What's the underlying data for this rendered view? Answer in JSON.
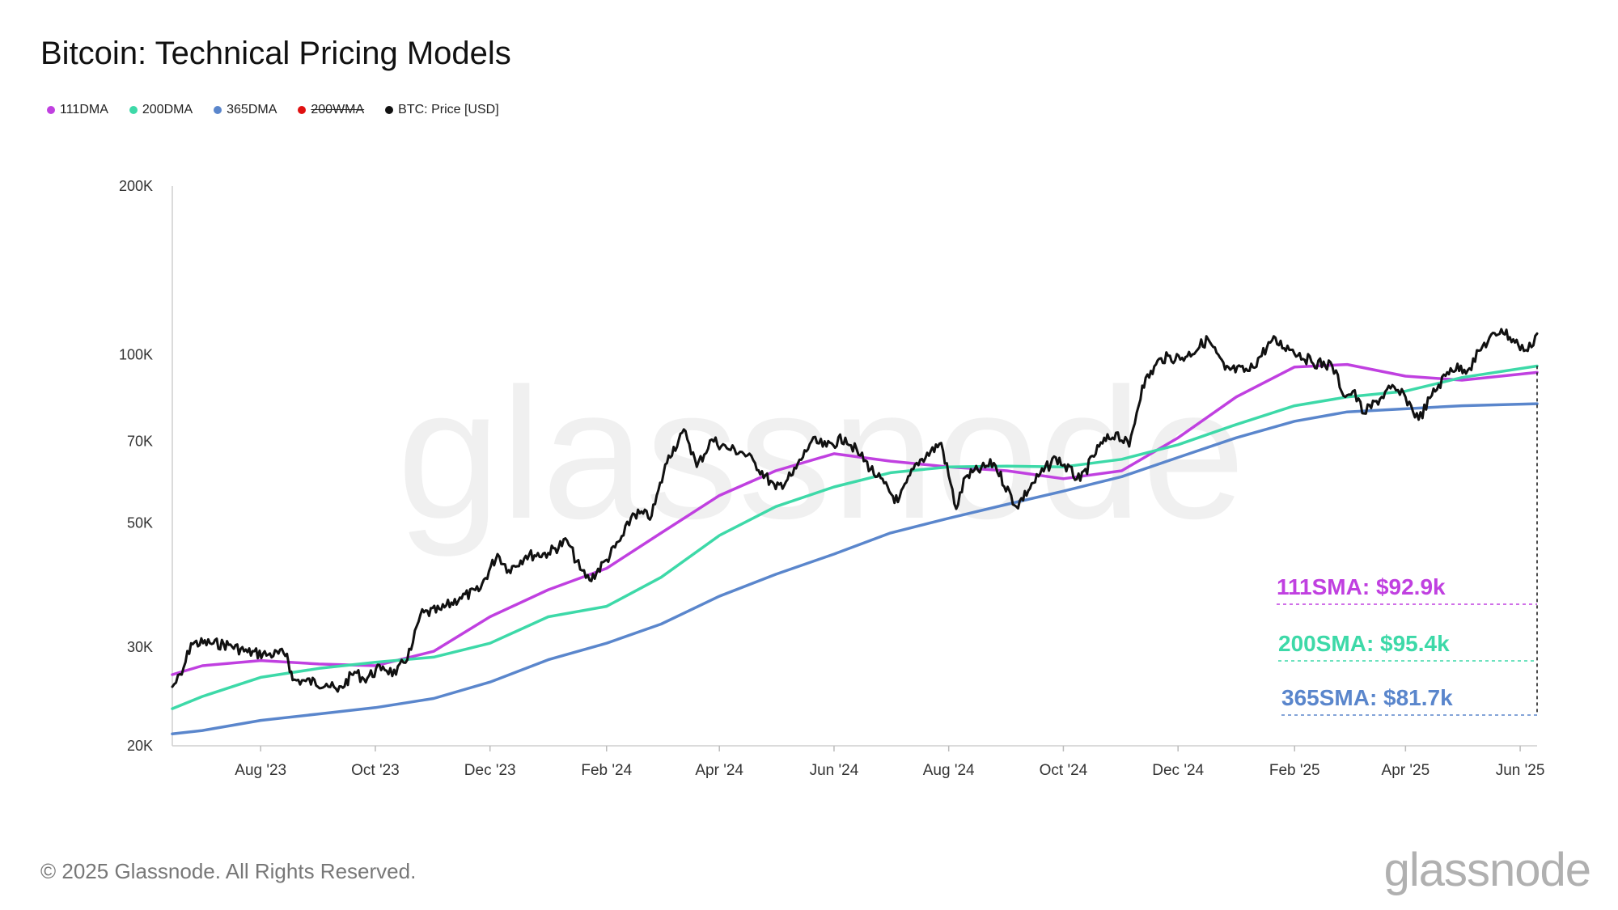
{
  "title": "Bitcoin: Technical Pricing Models",
  "legend": [
    {
      "label": "111DMA",
      "color": "#c040e0",
      "strike": false
    },
    {
      "label": "200DMA",
      "color": "#3dd9a8",
      "strike": false
    },
    {
      "label": "365DMA",
      "color": "#5a86cc",
      "strike": false
    },
    {
      "label": "200WMA",
      "color": "#e01010",
      "strike": true
    },
    {
      "label": "BTC: Price [USD]",
      "color": "#111111",
      "strike": false
    }
  ],
  "watermark": "glassnode",
  "footer": {
    "copyright": "© 2025 Glassnode. All Rights Reserved.",
    "logo": "glassnode"
  },
  "chart_data": {
    "type": "line",
    "title": "Bitcoin: Technical Pricing Models",
    "y_scale": "log",
    "ylim": [
      20000,
      200000
    ],
    "y_ticks": [
      {
        "value": 20000,
        "label": "20K"
      },
      {
        "value": 30000,
        "label": "30K"
      },
      {
        "value": 50000,
        "label": "50K"
      },
      {
        "value": 70000,
        "label": "70K"
      },
      {
        "value": 100000,
        "label": "100K"
      },
      {
        "value": 200000,
        "label": "200K"
      }
    ],
    "xlim": [
      "2023-06-15",
      "2025-06-10"
    ],
    "x_ticks": [
      {
        "date": "2023-08-01",
        "label": "Aug '23"
      },
      {
        "date": "2023-10-01",
        "label": "Oct '23"
      },
      {
        "date": "2023-12-01",
        "label": "Dec '23"
      },
      {
        "date": "2024-02-01",
        "label": "Feb '24"
      },
      {
        "date": "2024-04-01",
        "label": "Apr '24"
      },
      {
        "date": "2024-06-01",
        "label": "Jun '24"
      },
      {
        "date": "2024-08-01",
        "label": "Aug '24"
      },
      {
        "date": "2024-10-01",
        "label": "Oct '24"
      },
      {
        "date": "2024-12-01",
        "label": "Dec '24"
      },
      {
        "date": "2025-02-01",
        "label": "Feb '25"
      },
      {
        "date": "2025-04-01",
        "label": "Apr '25"
      },
      {
        "date": "2025-06-01",
        "label": "Jun '25"
      }
    ],
    "grid": false,
    "legend_position": "top-left",
    "series": [
      {
        "name": "111DMA",
        "color": "#c040e0",
        "points": [
          [
            "2023-06-15",
            26800
          ],
          [
            "2023-07-01",
            27800
          ],
          [
            "2023-08-01",
            28400
          ],
          [
            "2023-09-01",
            28000
          ],
          [
            "2023-10-01",
            27800
          ],
          [
            "2023-11-01",
            29500
          ],
          [
            "2023-12-01",
            34000
          ],
          [
            "2024-01-01",
            38000
          ],
          [
            "2024-02-01",
            41500
          ],
          [
            "2024-03-01",
            48000
          ],
          [
            "2024-04-01",
            56000
          ],
          [
            "2024-05-01",
            62000
          ],
          [
            "2024-06-01",
            66500
          ],
          [
            "2024-07-01",
            64500
          ],
          [
            "2024-08-01",
            63000
          ],
          [
            "2024-09-01",
            62000
          ],
          [
            "2024-10-01",
            60000
          ],
          [
            "2024-11-01",
            62000
          ],
          [
            "2024-12-01",
            71000
          ],
          [
            "2025-01-01",
            84000
          ],
          [
            "2025-02-01",
            95000
          ],
          [
            "2025-03-01",
            96000
          ],
          [
            "2025-04-01",
            91500
          ],
          [
            "2025-05-01",
            90000
          ],
          [
            "2025-06-10",
            92900
          ]
        ]
      },
      {
        "name": "200DMA",
        "color": "#3dd9a8",
        "points": [
          [
            "2023-06-15",
            23300
          ],
          [
            "2023-07-01",
            24500
          ],
          [
            "2023-08-01",
            26500
          ],
          [
            "2023-09-01",
            27500
          ],
          [
            "2023-10-01",
            28200
          ],
          [
            "2023-11-01",
            28800
          ],
          [
            "2023-12-01",
            30500
          ],
          [
            "2024-01-01",
            34000
          ],
          [
            "2024-02-01",
            35500
          ],
          [
            "2024-03-01",
            40000
          ],
          [
            "2024-04-01",
            47500
          ],
          [
            "2024-05-01",
            53500
          ],
          [
            "2024-06-01",
            58000
          ],
          [
            "2024-07-01",
            61500
          ],
          [
            "2024-08-01",
            63000
          ],
          [
            "2024-09-01",
            63200
          ],
          [
            "2024-10-01",
            63000
          ],
          [
            "2024-11-01",
            65000
          ],
          [
            "2024-12-01",
            69000
          ],
          [
            "2025-01-01",
            75000
          ],
          [
            "2025-02-01",
            81000
          ],
          [
            "2025-03-01",
            84000
          ],
          [
            "2025-04-01",
            86000
          ],
          [
            "2025-05-01",
            91000
          ],
          [
            "2025-06-10",
            95400
          ]
        ]
      },
      {
        "name": "365DMA",
        "color": "#5a86cc",
        "points": [
          [
            "2023-06-15",
            21000
          ],
          [
            "2023-07-01",
            21300
          ],
          [
            "2023-08-01",
            22200
          ],
          [
            "2023-09-01",
            22800
          ],
          [
            "2023-10-01",
            23400
          ],
          [
            "2023-11-01",
            24300
          ],
          [
            "2023-12-01",
            26000
          ],
          [
            "2024-01-01",
            28500
          ],
          [
            "2024-02-01",
            30500
          ],
          [
            "2024-03-01",
            33000
          ],
          [
            "2024-04-01",
            37000
          ],
          [
            "2024-05-01",
            40500
          ],
          [
            "2024-06-01",
            44000
          ],
          [
            "2024-07-01",
            48000
          ],
          [
            "2024-08-01",
            51000
          ],
          [
            "2024-09-01",
            54000
          ],
          [
            "2024-10-01",
            57000
          ],
          [
            "2024-11-01",
            60500
          ],
          [
            "2024-12-01",
            65500
          ],
          [
            "2025-01-01",
            71000
          ],
          [
            "2025-02-01",
            76000
          ],
          [
            "2025-03-01",
            79000
          ],
          [
            "2025-04-01",
            80000
          ],
          [
            "2025-05-01",
            81000
          ],
          [
            "2025-06-10",
            81700
          ]
        ]
      },
      {
        "name": "BTC: Price [USD]",
        "color": "#111111",
        "points": [
          [
            "2023-06-15",
            25500
          ],
          [
            "2023-06-20",
            26800
          ],
          [
            "2023-06-25",
            30500
          ],
          [
            "2023-07-05",
            30500
          ],
          [
            "2023-07-15",
            30300
          ],
          [
            "2023-07-25",
            29400
          ],
          [
            "2023-08-05",
            29100
          ],
          [
            "2023-08-15",
            29200
          ],
          [
            "2023-08-18",
            26200
          ],
          [
            "2023-08-25",
            26100
          ],
          [
            "2023-09-05",
            25800
          ],
          [
            "2023-09-11",
            25000
          ],
          [
            "2023-09-20",
            27100
          ],
          [
            "2023-09-25",
            26300
          ],
          [
            "2023-10-05",
            27700
          ],
          [
            "2023-10-12",
            26800
          ],
          [
            "2023-10-20",
            29700
          ],
          [
            "2023-10-25",
            34300
          ],
          [
            "2023-11-05",
            35000
          ],
          [
            "2023-11-15",
            36800
          ],
          [
            "2023-11-25",
            37800
          ],
          [
            "2023-12-05",
            44000
          ],
          [
            "2023-12-11",
            41200
          ],
          [
            "2023-12-20",
            43700
          ],
          [
            "2024-01-01",
            44200
          ],
          [
            "2024-01-11",
            46500
          ],
          [
            "2024-01-18",
            41300
          ],
          [
            "2024-01-23",
            39500
          ],
          [
            "2024-02-01",
            43000
          ],
          [
            "2024-02-10",
            47500
          ],
          [
            "2024-02-15",
            52000
          ],
          [
            "2024-02-25",
            51500
          ],
          [
            "2024-03-05",
            66000
          ],
          [
            "2024-03-14",
            73000
          ],
          [
            "2024-03-20",
            63000
          ],
          [
            "2024-03-28",
            70500
          ],
          [
            "2024-04-05",
            68000
          ],
          [
            "2024-04-13",
            67000
          ],
          [
            "2024-04-20",
            64000
          ],
          [
            "2024-05-01",
            57500
          ],
          [
            "2024-05-10",
            61000
          ],
          [
            "2024-05-20",
            70000
          ],
          [
            "2024-05-28",
            68500
          ],
          [
            "2024-06-07",
            71000
          ],
          [
            "2024-06-15",
            66000
          ],
          [
            "2024-06-24",
            60500
          ],
          [
            "2024-07-05",
            54500
          ],
          [
            "2024-07-15",
            64000
          ],
          [
            "2024-07-28",
            69500
          ],
          [
            "2024-08-05",
            53000
          ],
          [
            "2024-08-10",
            60500
          ],
          [
            "2024-08-25",
            64000
          ],
          [
            "2024-09-06",
            53500
          ],
          [
            "2024-09-15",
            59000
          ],
          [
            "2024-09-27",
            65500
          ],
          [
            "2024-10-10",
            59500
          ],
          [
            "2024-10-20",
            68500
          ],
          [
            "2024-10-29",
            72500
          ],
          [
            "2024-11-05",
            68500
          ],
          [
            "2024-11-12",
            88000
          ],
          [
            "2024-11-22",
            98500
          ],
          [
            "2024-12-05",
            99000
          ],
          [
            "2024-12-17",
            106500
          ],
          [
            "2024-12-26",
            94000
          ],
          [
            "2025-01-08",
            93500
          ],
          [
            "2025-01-20",
            106000
          ],
          [
            "2025-01-31",
            102000
          ],
          [
            "2025-02-10",
            97000
          ],
          [
            "2025-02-21",
            95500
          ],
          [
            "2025-02-28",
            84000
          ],
          [
            "2025-03-04",
            86000
          ],
          [
            "2025-03-10",
            78500
          ],
          [
            "2025-03-24",
            87000
          ],
          [
            "2025-04-01",
            84000
          ],
          [
            "2025-04-08",
            76500
          ],
          [
            "2025-04-15",
            84500
          ],
          [
            "2025-04-25",
            94500
          ],
          [
            "2025-05-05",
            94500
          ],
          [
            "2025-05-12",
            103500
          ],
          [
            "2025-05-22",
            111000
          ],
          [
            "2025-05-31",
            104000
          ],
          [
            "2025-06-05",
            101500
          ],
          [
            "2025-06-10",
            109000
          ]
        ]
      }
    ],
    "annotations": [
      {
        "label": "111SMA: $92.9k",
        "color": "#c040e0"
      },
      {
        "label": "200SMA: $95.4k",
        "color": "#3dd9a8"
      },
      {
        "label": "365SMA: $81.7k",
        "color": "#5a86cc"
      }
    ]
  }
}
